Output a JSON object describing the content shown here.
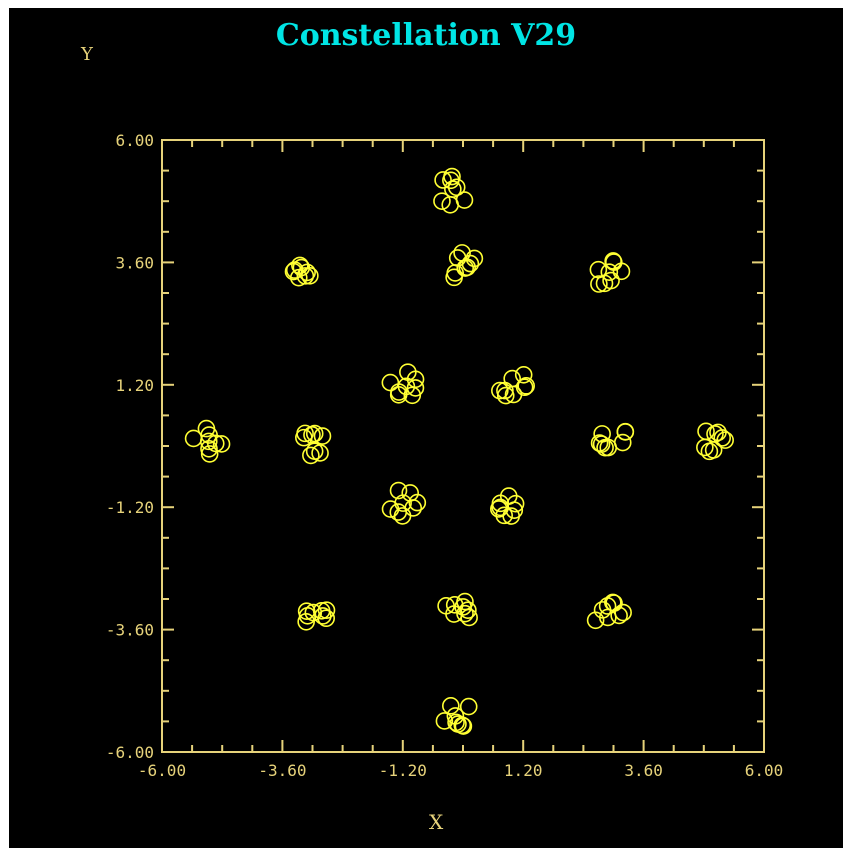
{
  "colors": {
    "background": "#000000",
    "title": "#00e5e5",
    "axis": "#e6d27a",
    "points": "#ffff33"
  },
  "chart_data": {
    "type": "scatter",
    "title": "Constellation V29",
    "xlabel": "X",
    "ylabel": "Y",
    "xlim": [
      -6.0,
      6.0
    ],
    "ylim": [
      -6.0,
      6.0
    ],
    "xticks": [
      -6.0,
      -3.6,
      -1.2,
      1.2,
      3.6,
      6.0
    ],
    "yticks": [
      -6.0,
      -3.6,
      -1.2,
      1.2,
      3.6,
      6.0
    ],
    "xtick_labels": [
      "-6.00",
      "-3.60",
      "-1.20",
      "1.20",
      "3.60",
      "6.00"
    ],
    "ytick_labels": [
      "-6.00",
      "-3.60",
      "-1.20",
      "1.20",
      "3.60",
      "6.00"
    ],
    "grid": false,
    "marker": "open-circle",
    "series": [
      {
        "clusters": [
          {
            "center": [
              -0.2,
              5.0
            ]
          },
          {
            "center": [
              -3.1,
              3.4
            ]
          },
          {
            "center": [
              0.0,
              3.5
            ]
          },
          {
            "center": [
              2.9,
              3.4
            ]
          },
          {
            "center": [
              -1.2,
              1.2
            ]
          },
          {
            "center": [
              1.0,
              1.2
            ]
          },
          {
            "center": [
              -5.1,
              0.1
            ]
          },
          {
            "center": [
              -3.0,
              0.1
            ]
          },
          {
            "center": [
              3.0,
              0.1
            ]
          },
          {
            "center": [
              5.0,
              0.1
            ]
          },
          {
            "center": [
              -1.2,
              -1.1
            ]
          },
          {
            "center": [
              0.9,
              -1.1
            ]
          },
          {
            "center": [
              -3.0,
              -3.3
            ]
          },
          {
            "center": [
              -0.1,
              -3.3
            ]
          },
          {
            "center": [
              2.9,
              -3.3
            ]
          },
          {
            "center": [
              -0.1,
              -5.3
            ]
          }
        ],
        "points_per_cluster": 8,
        "spread": 0.3
      }
    ]
  }
}
